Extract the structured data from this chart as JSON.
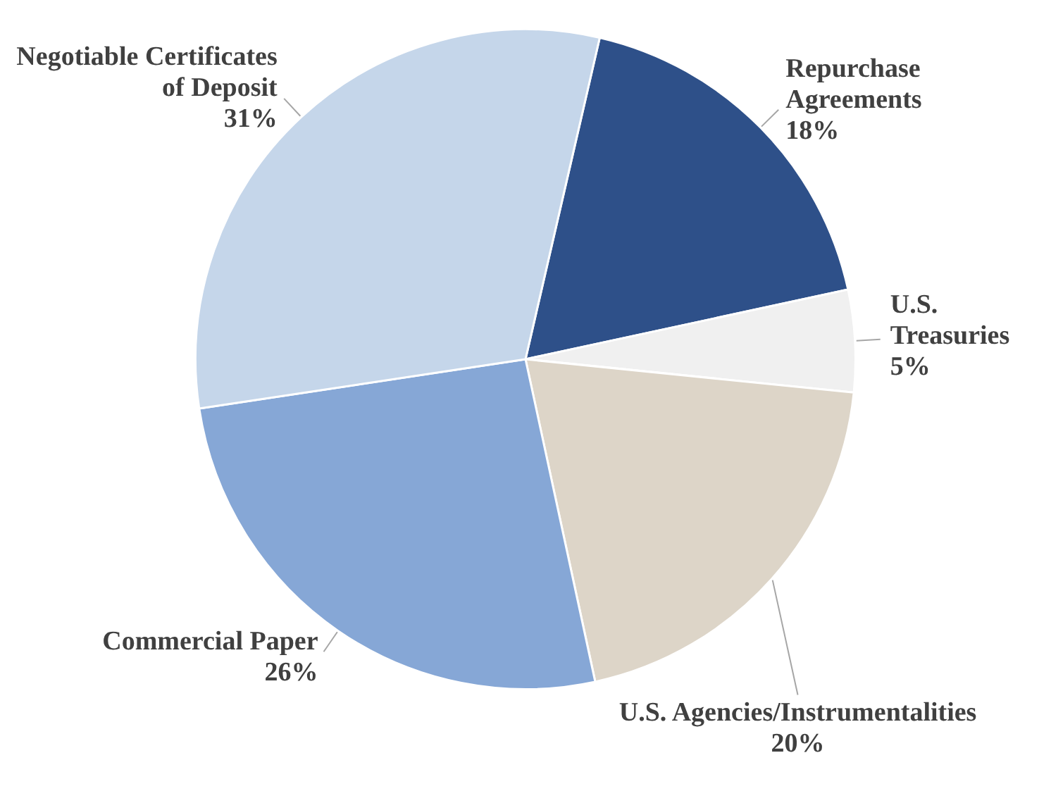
{
  "chart_data": {
    "type": "pie",
    "categories": [
      "Repurchase Agreements",
      "U.S. Treasuries",
      "U.S. Agencies/Instrumentalities",
      "Commercial Paper",
      "Negotiable Certificates of Deposit"
    ],
    "values": [
      18,
      5,
      20,
      26,
      31
    ],
    "colors": [
      "#2e5089",
      "#f0f0f0",
      "#ddd5c8",
      "#86a7d6",
      "#c5d6ea"
    ],
    "value_labels": [
      "18%",
      "5%",
      "20%",
      "26%",
      "31%"
    ],
    "legend": false
  }
}
